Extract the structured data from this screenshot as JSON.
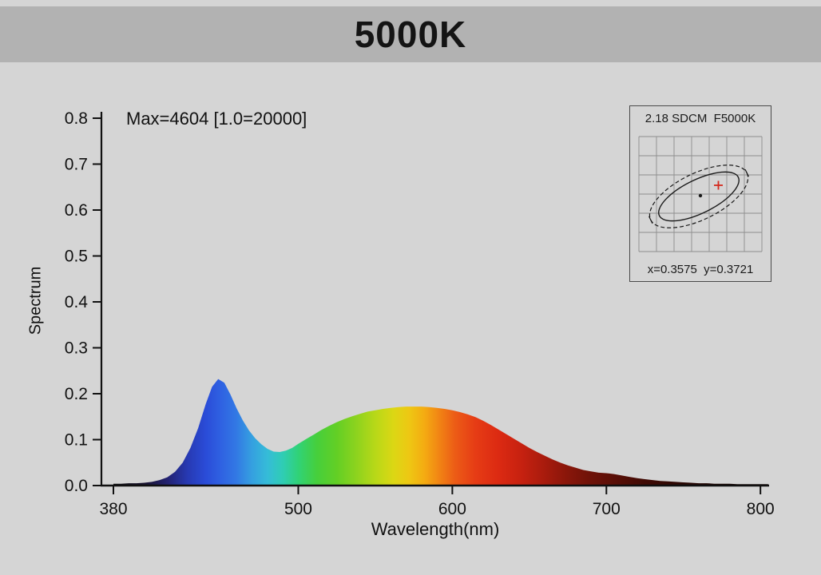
{
  "header": {
    "title": "5000K"
  },
  "chart": {
    "annotation": "Max=4604  [1.0=20000]",
    "ylabel": "Spectrum",
    "xlabel": "Wavelength(nm)",
    "y_tick_labels": [
      "0.0",
      "0.1",
      "0.2",
      "0.3",
      "0.4",
      "0.5",
      "0.6",
      "0.7",
      "0.8"
    ],
    "x_tick_labels": [
      "380",
      "500",
      "600",
      "700",
      "800"
    ]
  },
  "inset": {
    "title": "2.18 SDCM  F5000K",
    "coords": "x=0.3575  y=0.3721"
  },
  "chart_data": {
    "type": "area",
    "title": "5000K",
    "xlabel": "Wavelength(nm)",
    "ylabel": "Spectrum",
    "xlim": [
      380,
      810
    ],
    "ylim": [
      0,
      0.8
    ],
    "x_ticks": [
      380,
      500,
      600,
      700,
      800
    ],
    "y_ticks": [
      0,
      0.1,
      0.2,
      0.3,
      0.4,
      0.5,
      0.6,
      0.7,
      0.8
    ],
    "annotation": "Max=4604 [1.0=20000]",
    "max_value_counts": 4604,
    "scale_note": "1.0=20000",
    "grid": false,
    "series": [
      {
        "name": "spectral power distribution",
        "x": [
          380,
          385,
          390,
          395,
          400,
          405,
          410,
          415,
          420,
          425,
          430,
          435,
          440,
          444,
          448,
          452,
          456,
          460,
          464,
          468,
          472,
          476,
          480,
          484,
          488,
          492,
          496,
          500,
          505,
          510,
          515,
          520,
          525,
          530,
          535,
          540,
          545,
          550,
          555,
          560,
          565,
          570,
          575,
          580,
          585,
          590,
          595,
          600,
          605,
          610,
          615,
          620,
          625,
          630,
          635,
          640,
          645,
          650,
          655,
          660,
          665,
          670,
          675,
          680,
          685,
          690,
          695,
          700,
          705,
          710,
          715,
          720,
          725,
          730,
          735,
          740,
          745,
          750,
          755,
          760,
          765,
          770,
          775,
          780,
          785,
          790,
          795,
          800,
          805
        ],
        "values": [
          0.004,
          0.004,
          0.005,
          0.005,
          0.006,
          0.008,
          0.012,
          0.018,
          0.03,
          0.05,
          0.082,
          0.125,
          0.178,
          0.215,
          0.232,
          0.224,
          0.198,
          0.168,
          0.142,
          0.12,
          0.103,
          0.09,
          0.08,
          0.074,
          0.073,
          0.076,
          0.082,
          0.091,
          0.101,
          0.111,
          0.121,
          0.13,
          0.138,
          0.145,
          0.151,
          0.156,
          0.161,
          0.164,
          0.167,
          0.169,
          0.171,
          0.172,
          0.172,
          0.172,
          0.171,
          0.169,
          0.167,
          0.164,
          0.16,
          0.155,
          0.149,
          0.141,
          0.132,
          0.122,
          0.112,
          0.102,
          0.092,
          0.082,
          0.073,
          0.065,
          0.057,
          0.05,
          0.044,
          0.039,
          0.034,
          0.031,
          0.028,
          0.027,
          0.025,
          0.022,
          0.019,
          0.016,
          0.014,
          0.012,
          0.01,
          0.009,
          0.008,
          0.007,
          0.006,
          0.005,
          0.005,
          0.004,
          0.004,
          0.004,
          0.003,
          0.003,
          0.003,
          0.003,
          0.003
        ]
      }
    ],
    "spectrum_colors": [
      {
        "nm": 380,
        "hex": "#101010"
      },
      {
        "nm": 400,
        "hex": "#18122e"
      },
      {
        "nm": 415,
        "hex": "#232270"
      },
      {
        "nm": 428,
        "hex": "#2739b2"
      },
      {
        "nm": 440,
        "hex": "#2a4cd8"
      },
      {
        "nm": 450,
        "hex": "#2f62e2"
      },
      {
        "nm": 460,
        "hex": "#3279e4"
      },
      {
        "nm": 470,
        "hex": "#35a0e0"
      },
      {
        "nm": 480,
        "hex": "#35bcd8"
      },
      {
        "nm": 490,
        "hex": "#2fcdb4"
      },
      {
        "nm": 500,
        "hex": "#30d277"
      },
      {
        "nm": 512,
        "hex": "#46cf3c"
      },
      {
        "nm": 525,
        "hex": "#63cf25"
      },
      {
        "nm": 538,
        "hex": "#8ed31e"
      },
      {
        "nm": 550,
        "hex": "#b8d818"
      },
      {
        "nm": 562,
        "hex": "#dcd714"
      },
      {
        "nm": 572,
        "hex": "#eec713"
      },
      {
        "nm": 582,
        "hex": "#f4ab12"
      },
      {
        "nm": 592,
        "hex": "#f18214"
      },
      {
        "nm": 602,
        "hex": "#ec5b16"
      },
      {
        "nm": 615,
        "hex": "#e63c15"
      },
      {
        "nm": 630,
        "hex": "#dc2a12"
      },
      {
        "nm": 645,
        "hex": "#c62110"
      },
      {
        "nm": 660,
        "hex": "#a81b0d"
      },
      {
        "nm": 675,
        "hex": "#88160a"
      },
      {
        "nm": 690,
        "hex": "#6e1208"
      },
      {
        "nm": 705,
        "hex": "#5a0f07"
      },
      {
        "nm": 725,
        "hex": "#400b05"
      },
      {
        "nm": 750,
        "hex": "#2a0804"
      },
      {
        "nm": 775,
        "hex": "#1a0503"
      },
      {
        "nm": 805,
        "hex": "#0f0302"
      }
    ],
    "inset": {
      "sdcm": 2.18,
      "bin": "F5000K",
      "cie_x": 0.3575,
      "cie_y": 0.3721
    }
  }
}
